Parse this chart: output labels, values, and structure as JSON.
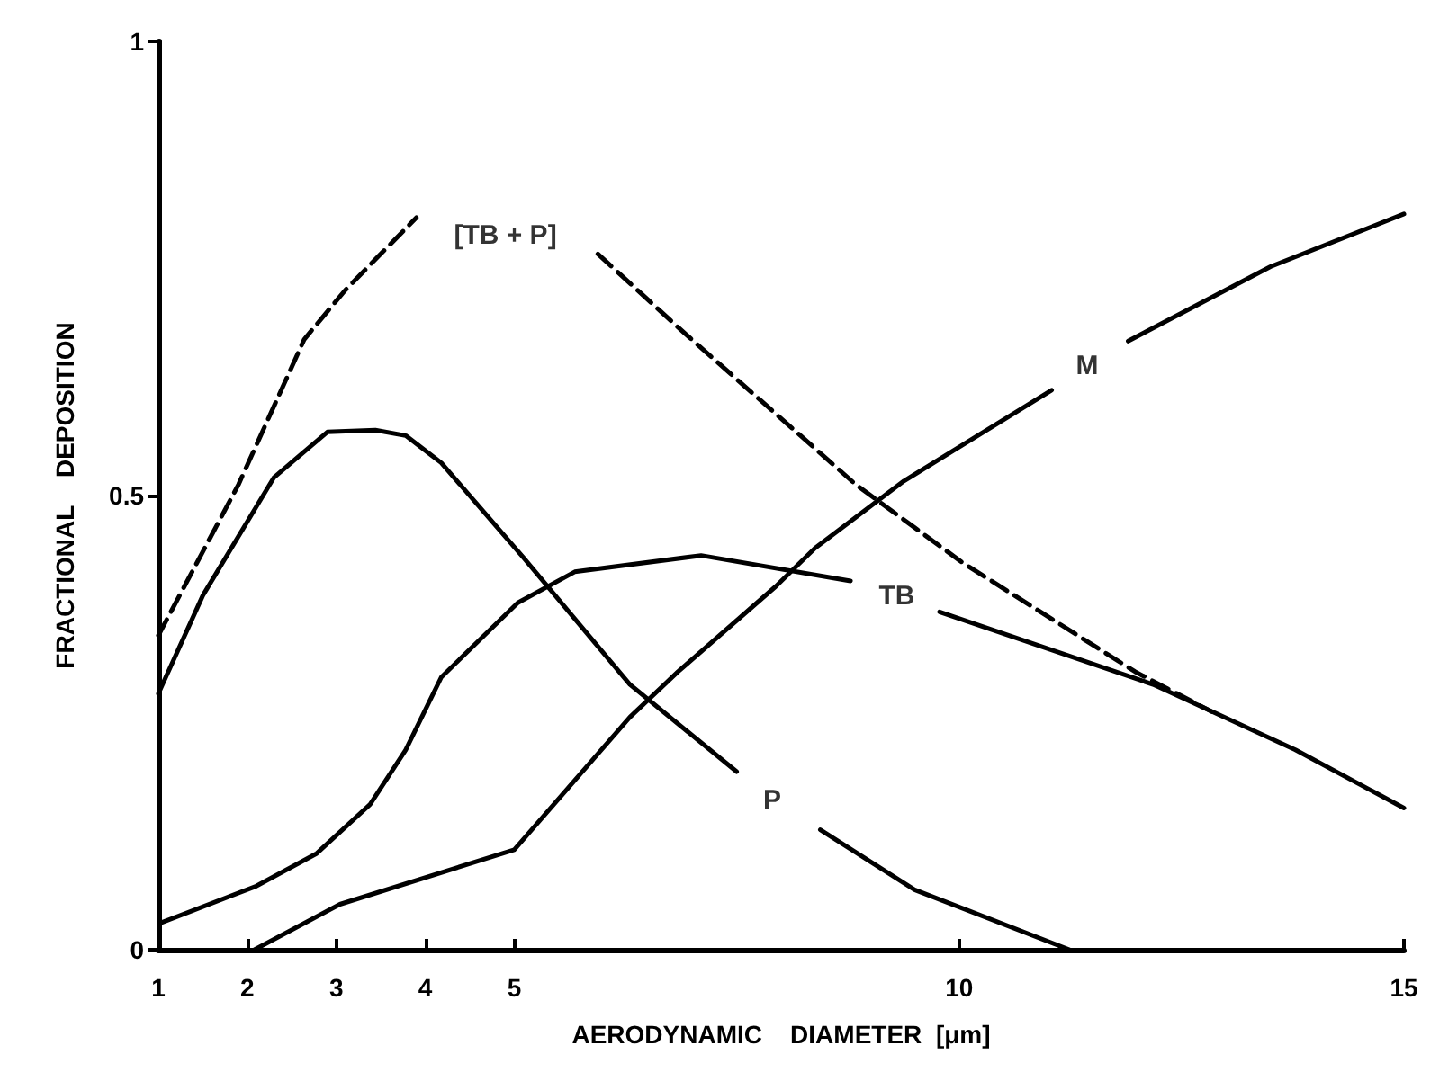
{
  "chart_data": {
    "type": "line",
    "xlabel": "AERODYNAMIC    DIAMETER  [μm]",
    "ylabel": "FRACTIONAL    DEPOSITION",
    "xlim": [
      1,
      15
    ],
    "ylim": [
      0,
      1
    ],
    "xticks": [
      1,
      2,
      3,
      4,
      5,
      10,
      15
    ],
    "yticks": [
      0,
      0.5,
      1
    ],
    "grid": false,
    "marker": "none",
    "series": [
      {
        "name": "P",
        "color": "#000000",
        "line_style": "solid",
        "x": [
          1,
          1.5,
          2.3,
          2.9,
          3.44,
          3.78,
          4.18,
          5.1,
          6.3,
          7.5,
          7.9,
          8.44,
          9.5,
          11.24
        ],
        "values": [
          0.282,
          0.39,
          0.52,
          0.57,
          0.572,
          0.566,
          0.536,
          0.432,
          0.292,
          0.196,
          null,
          0.132,
          0.066,
          0
        ]
      },
      {
        "name": "[TB + P]",
        "color": "#000000",
        "line_style": "dashed",
        "x": [
          1,
          1.9,
          2.64,
          3.1,
          3.9,
          4.9,
          5.94,
          6.9,
          8.84,
          10.04,
          11.98,
          12.84
        ],
        "values": [
          0.346,
          0.512,
          0.672,
          0.726,
          0.806,
          null,
          0.766,
          0.68,
          0.512,
          0.426,
          0.306,
          0.262
        ]
      },
      {
        "name": "TB",
        "color": "#000000",
        "line_style": "solid",
        "x": [
          1.04,
          2.1,
          2.78,
          3.38,
          3.78,
          4.18,
          5.04,
          5.68,
          7.1,
          8.78,
          9.3,
          9.78,
          12.18,
          13.78,
          15
        ],
        "values": [
          0.03,
          0.07,
          0.106,
          0.16,
          0.22,
          0.3,
          0.382,
          0.416,
          0.434,
          0.406,
          null,
          0.372,
          0.292,
          0.22,
          0.156
        ]
      },
      {
        "name": "M",
        "color": "#000000",
        "line_style": "solid",
        "x": [
          2.08,
          3.04,
          5,
          6.3,
          6.84,
          7.94,
          8.38,
          9.38,
          11.04,
          11.44,
          11.9,
          13.5,
          15
        ],
        "values": [
          0,
          0.05,
          0.11,
          0.256,
          0.306,
          0.4,
          0.442,
          0.516,
          0.616,
          null,
          0.67,
          0.752,
          0.81
        ]
      }
    ]
  }
}
